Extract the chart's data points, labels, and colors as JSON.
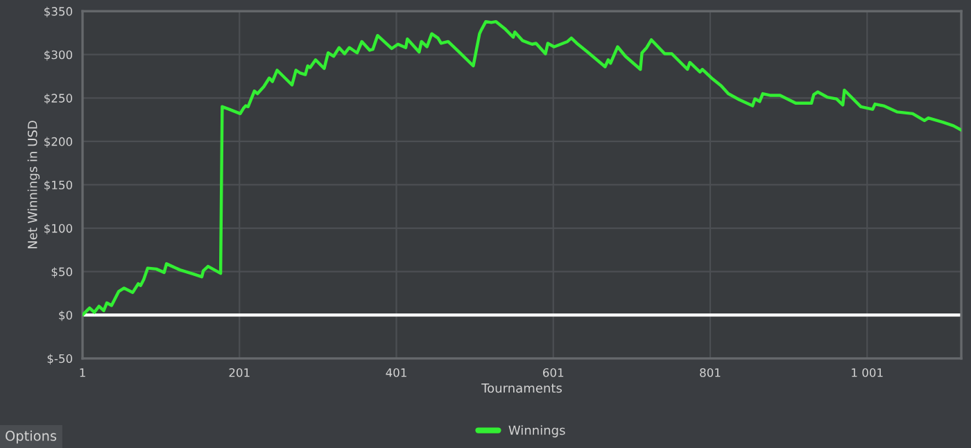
{
  "chart_data": {
    "type": "line",
    "xlabel": "Tournaments",
    "ylabel": "Net Winnings in USD",
    "x": [
      1,
      10,
      16,
      22,
      28,
      32,
      38,
      47,
      54,
      65,
      72,
      75,
      79,
      84,
      95,
      105,
      108,
      125,
      143,
      153,
      155,
      161,
      177,
      179,
      188,
      202,
      206,
      209,
      212,
      220,
      224,
      232,
      239,
      243,
      249,
      268,
      273,
      278,
      285,
      288,
      291,
      298,
      309,
      314,
      321,
      328,
      335,
      341,
      351,
      357,
      367,
      371,
      377,
      395,
      403,
      413,
      415,
      430,
      433,
      440,
      446,
      454,
      458,
      467,
      482,
      499,
      507,
      509,
      515,
      522,
      528,
      539,
      550,
      552,
      562,
      574,
      579,
      591,
      594,
      602,
      619,
      624,
      631,
      646,
      667,
      671,
      674,
      683,
      693,
      712,
      714,
      720,
      726,
      743,
      752,
      772,
      775,
      788,
      791,
      804,
      815,
      824,
      838,
      855,
      858,
      864,
      868,
      878,
      890,
      910,
      930,
      933,
      938,
      950,
      962,
      970,
      972,
      993,
      1008,
      1011,
      1022,
      1039,
      1059,
      1074,
      1079,
      1098,
      1111,
      1121
    ],
    "series": [
      {
        "name": "Winnings",
        "color": "#33ee33",
        "values": [
          0,
          8,
          3,
          10,
          5,
          14,
          11,
          27,
          31,
          26,
          36,
          34,
          41,
          54,
          53,
          49,
          59,
          52,
          47,
          44,
          51,
          56,
          48,
          240,
          237,
          232,
          238,
          241,
          240,
          258,
          255,
          263,
          273,
          269,
          282,
          265,
          282,
          279,
          277,
          287,
          285,
          294,
          284,
          302,
          298,
          308,
          301,
          308,
          302,
          315,
          305,
          306,
          322,
          307,
          312,
          308,
          318,
          303,
          315,
          309,
          324,
          319,
          313,
          315,
          302,
          287,
          324,
          328,
          338,
          337,
          338,
          330,
          320,
          326,
          316,
          312,
          313,
          301,
          313,
          309,
          315,
          319,
          313,
          302,
          286,
          294,
          290,
          309,
          298,
          283,
          302,
          308,
          317,
          301,
          301,
          283,
          291,
          280,
          283,
          272,
          264,
          255,
          248,
          241,
          249,
          246,
          255,
          253,
          253,
          244,
          244,
          254,
          257,
          251,
          249,
          242,
          259,
          240,
          237,
          243,
          241,
          234,
          232,
          224,
          227,
          222,
          218,
          213
        ]
      }
    ],
    "xlim": [
      1,
      1121
    ],
    "xticks": [
      1,
      201,
      401,
      601,
      801,
      {
        "value": 1001,
        "label": "1 001"
      }
    ],
    "ylim": [
      -50,
      350
    ],
    "yticks": [
      {
        "value": -50,
        "label": "$-50"
      },
      {
        "value": 0,
        "label": "$0"
      },
      {
        "value": 50,
        "label": "$50"
      },
      {
        "value": 100,
        "label": "$100"
      },
      {
        "value": 150,
        "label": "$150"
      },
      {
        "value": 200,
        "label": "$200"
      },
      {
        "value": 250,
        "label": "$250"
      },
      {
        "value": 300,
        "label": "$300"
      },
      {
        "value": 350,
        "label": "$350"
      }
    ],
    "ref_lines": [
      {
        "axis": "y",
        "value": 0,
        "color": "#ffffff"
      }
    ],
    "grid": true,
    "legend": "bottom",
    "marker": "none",
    "line_style": "solid",
    "annotations": [
      "Options"
    ]
  }
}
